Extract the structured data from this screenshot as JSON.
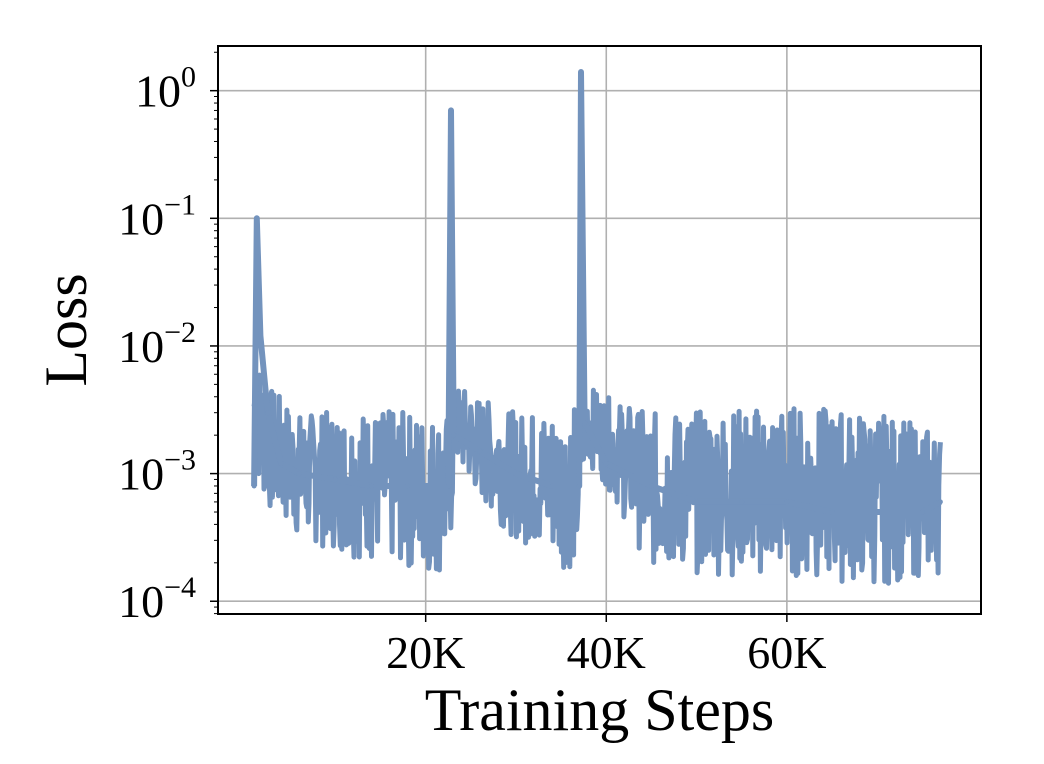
{
  "chart_data": {
    "type": "line",
    "title": "",
    "xlabel": "Training Steps",
    "ylabel": "Loss",
    "x_scale": "linear",
    "y_scale": "log",
    "xlim": [
      -3000,
      81500
    ],
    "ylim_log10": [
      -4.1,
      0.35
    ],
    "grid": true,
    "x_ticks": [
      {
        "value": 20000,
        "label": "20K"
      },
      {
        "value": 40000,
        "label": "40K"
      },
      {
        "value": 60000,
        "label": "60K"
      }
    ],
    "y_ticks": [
      {
        "exp": 0,
        "base": "10",
        "sup": "0"
      },
      {
        "exp": -1,
        "base": "10",
        "sup": "−1"
      },
      {
        "exp": -2,
        "base": "10",
        "sup": "−2"
      },
      {
        "exp": -3,
        "base": "10",
        "sup": "−3"
      },
      {
        "exp": -4,
        "base": "10",
        "sup": "−4"
      }
    ],
    "series": [
      {
        "color": "#7393bd",
        "x": [
          1000,
          1300,
          1700,
          2500,
          4000,
          6000,
          10000,
          14000,
          18000,
          22500,
          22800,
          23100,
          26000,
          30000,
          34000,
          37000,
          37200,
          37600,
          40000,
          45000,
          50000,
          55000,
          60000,
          65000,
          70000,
          75000,
          77000
        ],
        "y": [
          0.0008,
          0.1,
          0.012,
          0.003,
          0.0012,
          0.001,
          0.0009,
          0.0008,
          0.0008,
          0.0008,
          0.7,
          0.002,
          0.0015,
          0.001,
          0.0008,
          0.0008,
          1.4,
          0.0025,
          0.0012,
          0.0008,
          0.0006,
          0.0006,
          0.0006,
          0.0005,
          0.0005,
          0.0005,
          0.0006
        ],
        "upper_envelope": [
          [
            1000,
            0.01
          ],
          [
            2500,
            0.005
          ],
          [
            6000,
            0.003
          ],
          [
            14000,
            0.0032
          ],
          [
            20000,
            0.003
          ],
          [
            22600,
            0.003
          ],
          [
            23500,
            0.005
          ],
          [
            26000,
            0.004
          ],
          [
            30000,
            0.003
          ],
          [
            36800,
            0.0035
          ],
          [
            37800,
            0.005
          ],
          [
            40000,
            0.004
          ],
          [
            45000,
            0.003
          ],
          [
            60000,
            0.0035
          ],
          [
            70000,
            0.003
          ],
          [
            77000,
            0.0022
          ]
        ],
        "lower_envelope": [
          [
            1000,
            0.001
          ],
          [
            2500,
            0.0005
          ],
          [
            6000,
            0.0003
          ],
          [
            14000,
            0.0002
          ],
          [
            22600,
            0.00015
          ],
          [
            23200,
            0.0012
          ],
          [
            26000,
            0.0006
          ],
          [
            30000,
            0.0003
          ],
          [
            36800,
            0.00016
          ],
          [
            37600,
            0.0013
          ],
          [
            40000,
            0.0008
          ],
          [
            45000,
            0.00017
          ],
          [
            60000,
            0.00015
          ],
          [
            70000,
            0.00013
          ],
          [
            77000,
            0.00016
          ]
        ]
      }
    ]
  }
}
